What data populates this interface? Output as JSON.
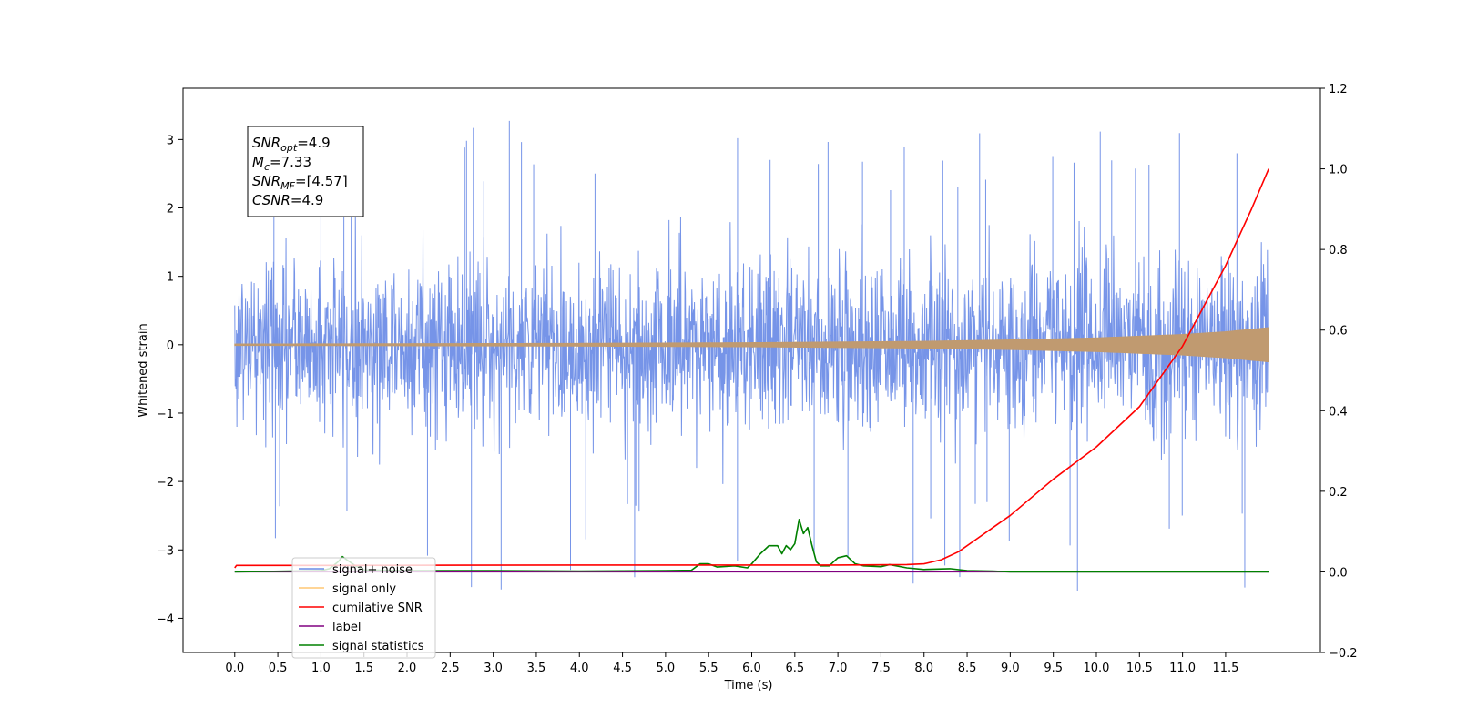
{
  "chart_data": {
    "type": "line",
    "xlabel": "Time (s)",
    "ylabel": "Whitened strain",
    "xlim": [
      -0.6,
      12.6
    ],
    "ylim": [
      -4.5,
      3.75
    ],
    "y2lim": [
      -0.2,
      1.2
    ],
    "xticks": [
      "0.0",
      "0.5",
      "1.0",
      "1.5",
      "2.0",
      "2.5",
      "3.0",
      "3.5",
      "4.0",
      "4.5",
      "5.0",
      "5.5",
      "6.0",
      "6.5",
      "7.0",
      "7.5",
      "8.0",
      "8.5",
      "9.0",
      "9.5",
      "10.0",
      "10.5",
      "11.0",
      "11.5"
    ],
    "yticks": [
      "3",
      "2",
      "1",
      "0",
      "−1",
      "−2",
      "−3",
      "−4"
    ],
    "y2ticks": [
      "1.2",
      "1.0",
      "0.8",
      "0.6",
      "0.4",
      "0.2",
      "0.0",
      "−0.2"
    ],
    "annotation": {
      "lines": [
        {
          "sym": "SNR",
          "sub": "opt",
          "rest": "=4.9"
        },
        {
          "sym": "M",
          "sub": "c",
          "rest": "=7.33"
        },
        {
          "sym": "SNR",
          "sub": "MF",
          "rest": "=[4.57]"
        },
        {
          "sym": "CSNR",
          "sub": "",
          "rest": "=4.9"
        }
      ]
    },
    "legend": {
      "placement": "lower-left",
      "entries": [
        {
          "label": "signal+ noise",
          "color": "#6a8be6"
        },
        {
          "label": "signal only",
          "color": "#ffc773"
        },
        {
          "label": "cumilative SNR",
          "color": "#ff0000"
        },
        {
          "label": "label",
          "color": "#800080"
        },
        {
          "label": "signal statistics",
          "color": "#008000"
        }
      ]
    },
    "series": [
      {
        "name": "signal+ noise",
        "axis": "left",
        "color": "#6a8be6",
        "x_range": [
          0.0,
          12.0
        ],
        "noise_envelope": {
          "typical": [
            -1.9,
            1.9
          ],
          "extremes": [
            -3.6,
            3.3
          ]
        }
      },
      {
        "name": "signal only",
        "axis": "left",
        "color": "#c09a70",
        "amplitude_envelope": {
          "x": [
            0.0,
            4.0,
            6.0,
            7.0,
            8.0,
            9.0,
            10.0,
            11.0,
            11.5,
            12.0
          ],
          "y": [
            0.01,
            0.02,
            0.03,
            0.04,
            0.05,
            0.07,
            0.1,
            0.15,
            0.19,
            0.25
          ]
        }
      },
      {
        "name": "cumilative SNR",
        "axis": "right",
        "color": "#ff0000",
        "x": [
          0.0,
          0.02,
          1.0,
          4.0,
          7.0,
          7.8,
          8.0,
          8.2,
          8.4,
          8.6,
          8.8,
          9.0,
          9.5,
          10.0,
          10.5,
          11.0,
          11.5,
          11.8,
          12.0
        ],
        "y": [
          0.01,
          0.016,
          0.016,
          0.017,
          0.017,
          0.018,
          0.02,
          0.03,
          0.05,
          0.08,
          0.11,
          0.14,
          0.23,
          0.31,
          0.41,
          0.56,
          0.76,
          0.9,
          1.0
        ]
      },
      {
        "name": "label",
        "axis": "right",
        "color": "#800080",
        "x": [
          0.0,
          12.0
        ],
        "y": [
          0.0,
          0.0
        ]
      },
      {
        "name": "signal statistics",
        "axis": "right",
        "color": "#008000",
        "x": [
          0.0,
          1.0,
          1.1,
          1.2,
          1.25,
          1.3,
          1.4,
          1.5,
          2.0,
          3.0,
          4.0,
          5.0,
          5.3,
          5.4,
          5.5,
          5.6,
          5.8,
          5.95,
          6.0,
          6.1,
          6.2,
          6.3,
          6.35,
          6.4,
          6.45,
          6.5,
          6.55,
          6.6,
          6.65,
          6.7,
          6.75,
          6.8,
          6.9,
          7.0,
          7.1,
          7.15,
          7.2,
          7.3,
          7.5,
          7.6,
          7.8,
          8.0,
          8.3,
          8.5,
          8.8,
          9.0,
          12.0
        ],
        "y": [
          0.0,
          0.003,
          0.008,
          0.025,
          0.038,
          0.03,
          0.015,
          0.005,
          0.003,
          0.003,
          0.002,
          0.003,
          0.004,
          0.02,
          0.02,
          0.012,
          0.015,
          0.01,
          0.02,
          0.045,
          0.065,
          0.065,
          0.045,
          0.065,
          0.055,
          0.07,
          0.13,
          0.095,
          0.11,
          0.065,
          0.025,
          0.015,
          0.015,
          0.035,
          0.04,
          0.03,
          0.02,
          0.015,
          0.013,
          0.018,
          0.01,
          0.006,
          0.008,
          0.003,
          0.002,
          0.0,
          0.0
        ]
      }
    ]
  }
}
